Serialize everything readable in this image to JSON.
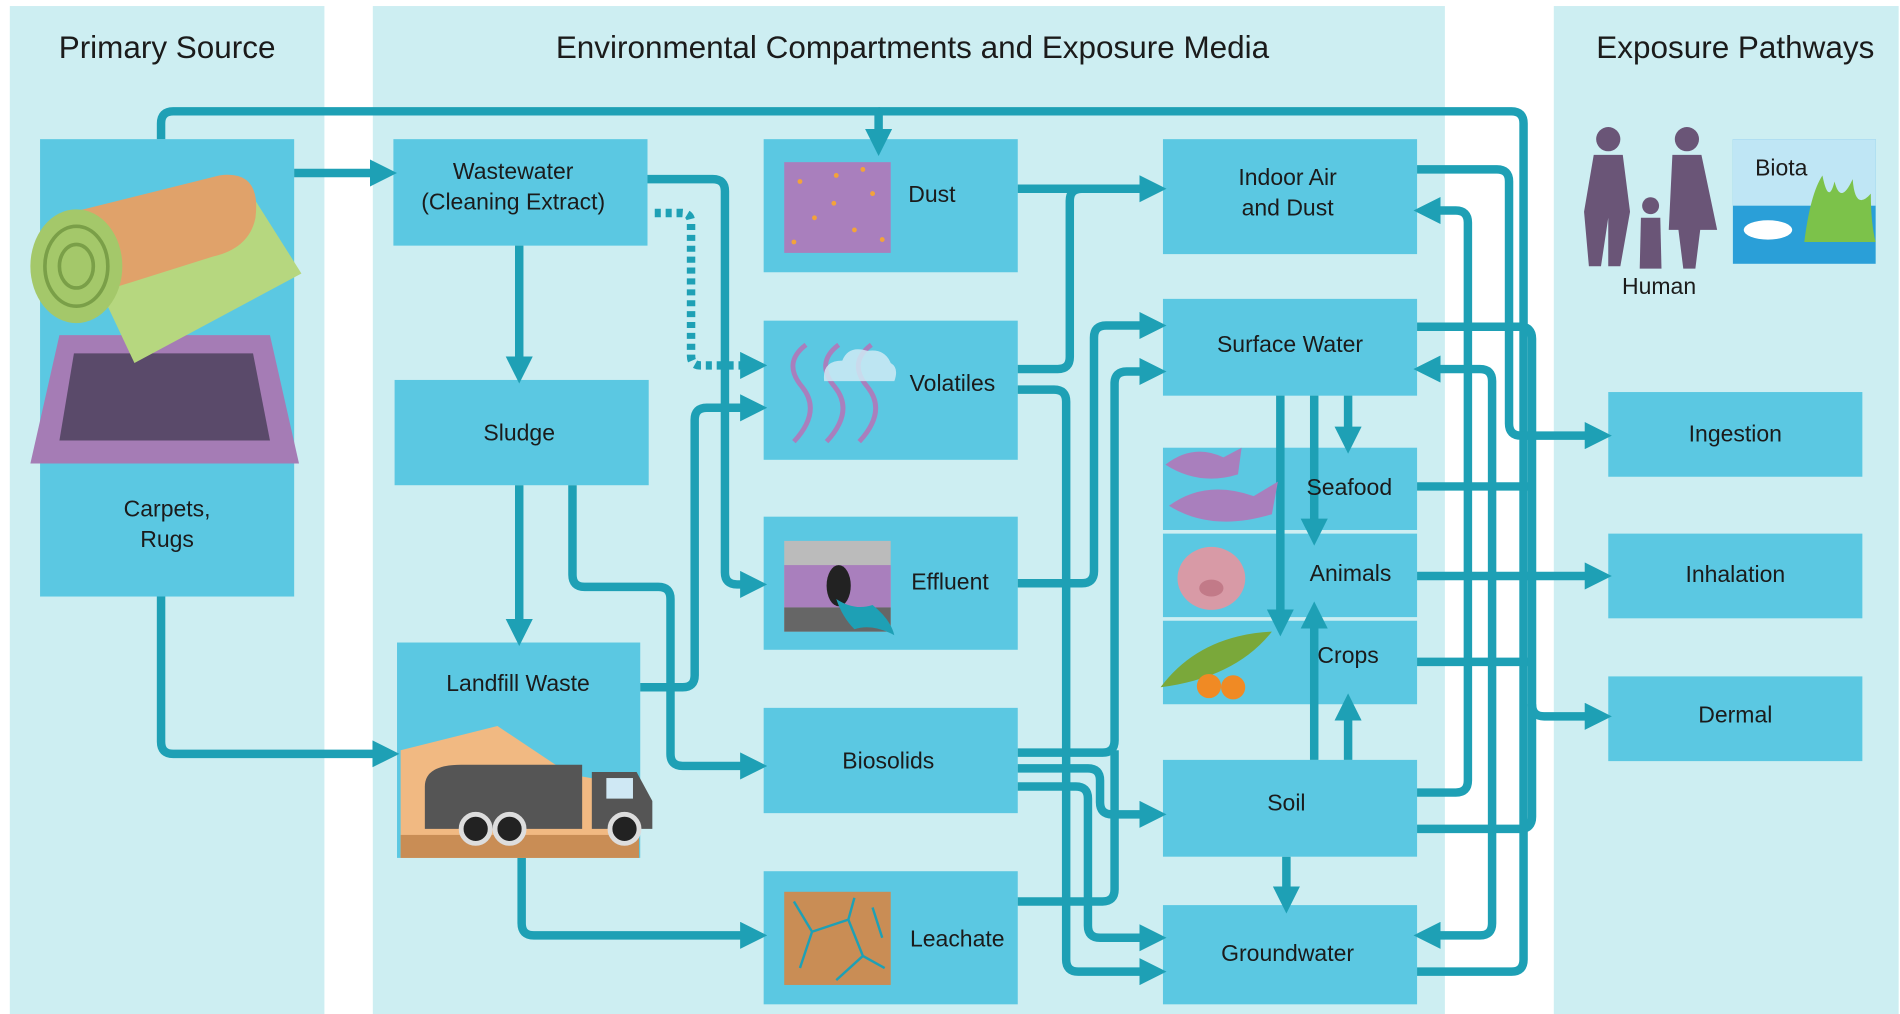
{
  "headers": {
    "primary": "Primary Source",
    "environmental": "Environmental Compartments and Exposure Media",
    "pathways": "Exposure Pathways"
  },
  "nodes": [
    {
      "lines": [
        "Carpets,",
        "Rugs"
      ]
    },
    {
      "lines": [
        "Wastewater",
        "(Cleaning Extract)"
      ]
    },
    {
      "lines": [
        "Sludge"
      ]
    },
    {
      "lines": [
        "Landfill Waste"
      ]
    },
    {
      "lines": [
        "Dust"
      ]
    },
    {
      "lines": [
        "Volatiles"
      ]
    },
    {
      "lines": [
        "Effluent"
      ]
    },
    {
      "lines": [
        "Biosolids"
      ]
    },
    {
      "lines": [
        "Leachate"
      ]
    },
    {
      "lines": [
        "Indoor Air",
        "and Dust"
      ]
    },
    {
      "lines": [
        "Surface Water"
      ]
    },
    {
      "lines": [
        "Seafood"
      ]
    },
    {
      "lines": [
        "Animals"
      ]
    },
    {
      "lines": [
        "Crops"
      ]
    },
    {
      "lines": [
        "Soil"
      ]
    },
    {
      "lines": [
        "Groundwater"
      ]
    },
    {
      "lines": [
        "Ingestion"
      ]
    },
    {
      "lines": [
        "Inhalation"
      ]
    },
    {
      "lines": [
        "Dermal"
      ]
    }
  ],
  "receptors": [
    "Human",
    "Biota"
  ]
}
